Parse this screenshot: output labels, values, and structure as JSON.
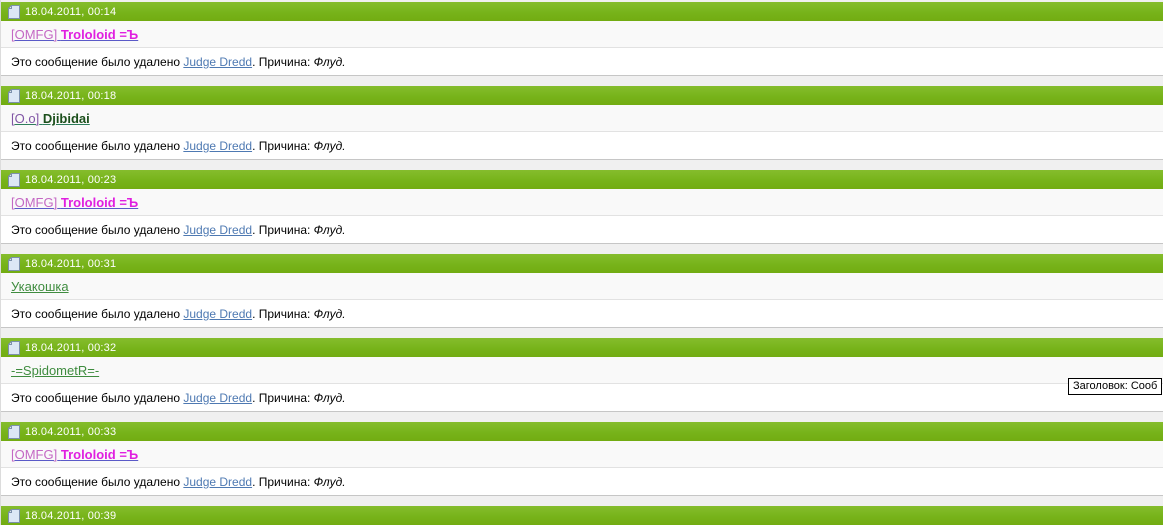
{
  "colors": {
    "header_green": "#77B31A",
    "header_text": "#FFFFFF",
    "user_row_bg": "#F9F9F9",
    "body_row_bg": "#FFFFFF",
    "page_bg": "#F0F0F0",
    "moderator_link": "#4E79B2",
    "icon_page_fill": "#DCE7F5",
    "icon_page_stroke": "#7C90AC"
  },
  "deleted_message": {
    "prefix": "Это сообщение было удалено ",
    "moderator": "Judge Dredd",
    "middle": ". Причина: ",
    "reason": "Флуд.",
    "moderator_link_color": "#4E79B2"
  },
  "tooltip": {
    "text": "Заголовок: Сооб"
  },
  "posts": [
    {
      "time": "18.04.2011, 00:14",
      "link_color": "#5A5AC8",
      "user_parts": [
        {
          "text": "[OMFG]",
          "color": "#C468C4",
          "bold": false
        },
        {
          "text": "Trololoid =Ъ",
          "color": "#E01FE0",
          "bold": true
        }
      ],
      "has_user": true,
      "has_body": true
    },
    {
      "time": "18.04.2011, 00:18",
      "link_color": "#2E7D5B",
      "user_parts": [
        {
          "text": "[O.o]",
          "color": "#8055A5",
          "bold": false
        },
        {
          "text": "Djibidai",
          "color": "#1B4F1B",
          "bold": true
        }
      ],
      "has_user": true,
      "has_body": true
    },
    {
      "time": "18.04.2011, 00:23",
      "link_color": "#5A5AC8",
      "user_parts": [
        {
          "text": "[OMFG]",
          "color": "#C468C4",
          "bold": false
        },
        {
          "text": "Trololoid =Ъ",
          "color": "#E01FE0",
          "bold": true
        }
      ],
      "has_user": true,
      "has_body": true
    },
    {
      "time": "18.04.2011, 00:31",
      "link_color": "#3F8C3F",
      "user_parts": [
        {
          "text": "Укакошка",
          "color": "#3F8C3F",
          "bold": false
        }
      ],
      "has_user": true,
      "has_body": true
    },
    {
      "time": "18.04.2011, 00:32",
      "link_color": "#3F8C3F",
      "user_parts": [
        {
          "text": "-=SpidometR=-",
          "color": "#3F8C3F",
          "bold": false
        }
      ],
      "has_user": true,
      "has_body": true
    },
    {
      "time": "18.04.2011, 00:33",
      "link_color": "#5A5AC8",
      "user_parts": [
        {
          "text": "[OMFG]",
          "color": "#C468C4",
          "bold": false
        },
        {
          "text": "Trololoid =Ъ",
          "color": "#E01FE0",
          "bold": true
        }
      ],
      "has_user": true,
      "has_body": true
    },
    {
      "time": "18.04.2011, 00:39",
      "link_color": "#3F8C3F",
      "user_parts": [],
      "has_user": false,
      "has_body": false
    }
  ]
}
